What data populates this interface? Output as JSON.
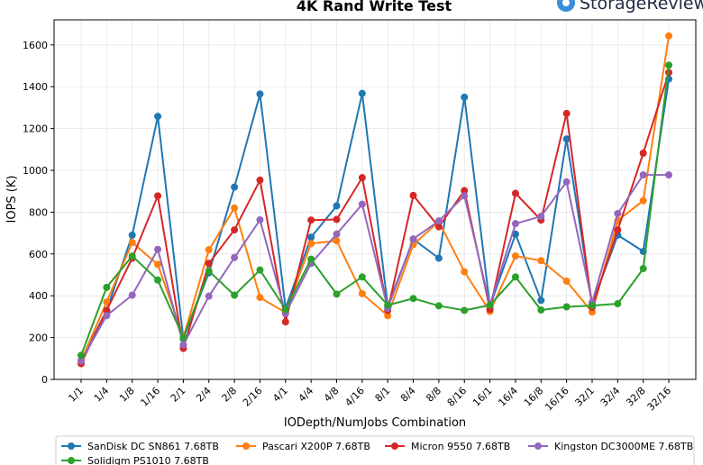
{
  "brand": {
    "name": "StorageReview",
    "accent": "#3a8fd8"
  },
  "chart_data": {
    "type": "line",
    "title": "4K Rand Write Test",
    "xlabel": "IODepth/NumJobs Combination",
    "ylabel": "IOPS (K)",
    "ylim": [
      0,
      1720
    ],
    "yticks": [
      0,
      200,
      400,
      600,
      800,
      1000,
      1200,
      1400,
      1600
    ],
    "grid": true,
    "legend_position": "bottom",
    "categories": [
      "1/1",
      "1/4",
      "1/8",
      "1/16",
      "2/1",
      "2/4",
      "2/8",
      "2/16",
      "4/1",
      "4/4",
      "4/8",
      "4/16",
      "8/1",
      "8/4",
      "8/8",
      "8/16",
      "16/1",
      "16/4",
      "16/8",
      "16/16",
      "32/1",
      "32/4",
      "32/8",
      "32/16"
    ],
    "series": [
      {
        "name": "SanDisk DC SN861 7.68TB",
        "color": "#1f77b4",
        "values": [
          90,
          330,
          690,
          1258,
          195,
          510,
          920,
          1365,
          340,
          680,
          830,
          1368,
          350,
          670,
          580,
          1350,
          350,
          695,
          378,
          1150,
          360,
          690,
          612,
          1437
        ]
      },
      {
        "name": "Pascari X200P 7.68TB",
        "color": "#ff7f0e",
        "values": [
          90,
          370,
          655,
          550,
          200,
          620,
          820,
          392,
          320,
          650,
          663,
          410,
          305,
          645,
          755,
          515,
          325,
          590,
          568,
          470,
          322,
          760,
          855,
          1643
        ]
      },
      {
        "name": "Micron 9550 7.68TB",
        "color": "#d62728",
        "values": [
          75,
          330,
          580,
          878,
          148,
          555,
          715,
          953,
          275,
          762,
          765,
          965,
          330,
          880,
          730,
          903,
          335,
          890,
          762,
          1272,
          345,
          715,
          1082,
          1468
        ]
      },
      {
        "name": "Kingston DC3000ME 7.68TB",
        "color": "#9467bd",
        "values": [
          88,
          305,
          403,
          622,
          165,
          398,
          583,
          763,
          315,
          555,
          695,
          838,
          340,
          672,
          758,
          878,
          355,
          745,
          780,
          945,
          368,
          793,
          978,
          978
        ]
      },
      {
        "name": "Solidigm PS1010 7.68TB",
        "color": "#2ca02c",
        "values": [
          115,
          440,
          590,
          475,
          200,
          518,
          403,
          523,
          335,
          575,
          408,
          490,
          355,
          387,
          352,
          330,
          355,
          490,
          332,
          347,
          353,
          362,
          530,
          1503
        ]
      }
    ]
  }
}
